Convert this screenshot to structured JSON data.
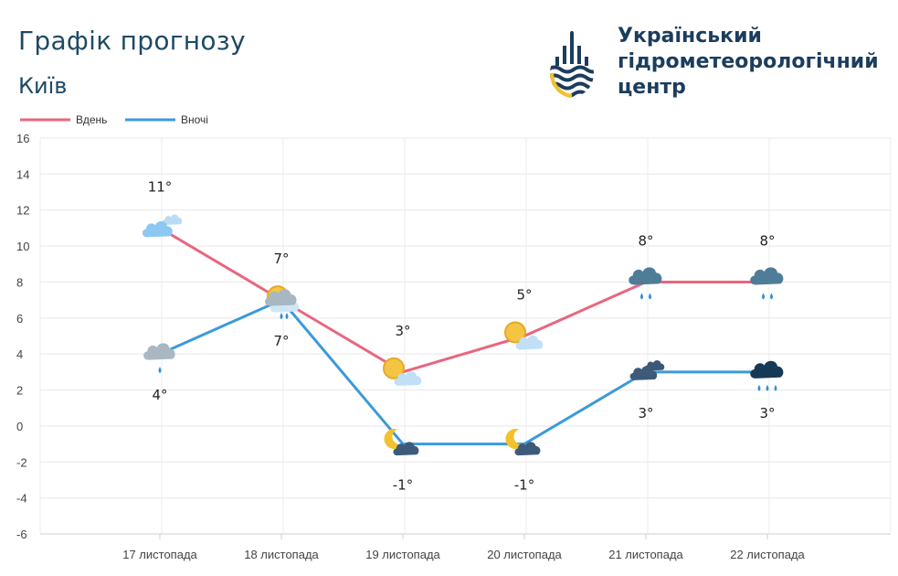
{
  "header": {
    "title": "Графік прогнозу",
    "city": "Київ",
    "org_line1": "Український",
    "org_line2": "гідрометеорологічний",
    "org_line3": "центр"
  },
  "colors": {
    "day": "#e8667f",
    "night": "#3b9ad9",
    "title": "#1e4a64",
    "logo_dark": "#1c3d5c",
    "logo_yellow": "#f2c12e"
  },
  "chart_data": {
    "type": "line",
    "categories": [
      "17 листопада",
      "18 листопада",
      "19 листопада",
      "20 листопада",
      "21 листопада",
      "22 листопада"
    ],
    "series": [
      {
        "name": "Вдень",
        "values": [
          11,
          7,
          3,
          5,
          8,
          8
        ],
        "labels": [
          "11°",
          "7°",
          "3°",
          "5°",
          "8°",
          "8°"
        ],
        "icons": [
          "cloudy-icon",
          "partly-cloudy-rain-icon",
          "sun-cloud-icon",
          "sun-cloud-icon",
          "rain-cloud-icon",
          "rain-cloud-icon"
        ]
      },
      {
        "name": "Вночі",
        "values": [
          4,
          7,
          -1,
          -1,
          3,
          3
        ],
        "labels": [
          "4°",
          "7°",
          "-1°",
          "-1°",
          "3°",
          "3°"
        ],
        "icons": [
          "cloud-rain-icon",
          "cloud-rain-icon",
          "moon-cloud-icon",
          "moon-cloud-icon",
          "dark-clouds-icon",
          "heavy-rain-icon"
        ]
      }
    ],
    "ylim": [
      -6,
      16
    ],
    "yticks": [
      -6,
      -4,
      -2,
      0,
      2,
      4,
      6,
      8,
      10,
      12,
      14,
      16
    ],
    "grid": true,
    "legend": "top-left"
  }
}
